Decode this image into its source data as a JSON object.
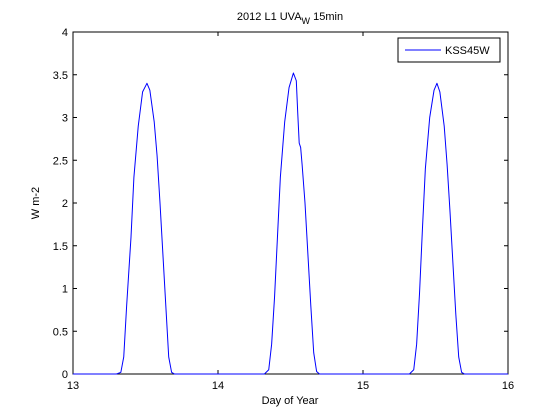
{
  "chart_data": {
    "type": "line",
    "title": {
      "main": "2012 L1 UVA",
      "subscript": "W",
      "suffix": " 15min"
    },
    "xlabel": "Day of Year",
    "ylabel": "W m-2",
    "xlim": [
      13,
      16
    ],
    "ylim": [
      0,
      4
    ],
    "xticks": [
      13,
      14,
      15,
      16
    ],
    "yticks": [
      0,
      0.5,
      1,
      1.5,
      2,
      2.5,
      3,
      3.5,
      4
    ],
    "xtick_labels": [
      "13",
      "14",
      "15",
      "16"
    ],
    "ytick_labels": [
      "0",
      "0.5",
      "1",
      "1.5",
      "2",
      "2.5",
      "3",
      "3.5",
      "4"
    ],
    "grid": false,
    "legend_position": "top-right",
    "series": [
      {
        "name": "KSS45W",
        "color": "#0000ff",
        "points": [
          [
            13.0,
            0
          ],
          [
            13.3,
            0
          ],
          [
            13.33,
            0.02
          ],
          [
            13.35,
            0.2
          ],
          [
            13.37,
            0.8
          ],
          [
            13.4,
            1.6
          ],
          [
            13.42,
            2.3
          ],
          [
            13.45,
            2.9
          ],
          [
            13.48,
            3.3
          ],
          [
            13.51,
            3.4
          ],
          [
            13.53,
            3.32
          ],
          [
            13.56,
            2.95
          ],
          [
            13.58,
            2.55
          ],
          [
            13.6,
            2.0
          ],
          [
            13.62,
            1.4
          ],
          [
            13.64,
            0.8
          ],
          [
            13.66,
            0.2
          ],
          [
            13.68,
            0.02
          ],
          [
            13.7,
            0
          ],
          [
            14.32,
            0
          ],
          [
            14.35,
            0.05
          ],
          [
            14.37,
            0.35
          ],
          [
            14.39,
            0.9
          ],
          [
            14.41,
            1.6
          ],
          [
            14.43,
            2.3
          ],
          [
            14.46,
            2.95
          ],
          [
            14.49,
            3.35
          ],
          [
            14.52,
            3.52
          ],
          [
            14.54,
            3.43
          ],
          [
            14.55,
            3.05
          ],
          [
            14.56,
            2.7
          ],
          [
            14.57,
            2.65
          ],
          [
            14.58,
            2.45
          ],
          [
            14.6,
            2.0
          ],
          [
            14.62,
            1.4
          ],
          [
            14.64,
            0.8
          ],
          [
            14.66,
            0.25
          ],
          [
            14.68,
            0.03
          ],
          [
            14.7,
            0
          ],
          [
            15.32,
            0
          ],
          [
            15.35,
            0.05
          ],
          [
            15.37,
            0.35
          ],
          [
            15.39,
            0.95
          ],
          [
            15.41,
            1.7
          ],
          [
            15.43,
            2.4
          ],
          [
            15.46,
            3.0
          ],
          [
            15.49,
            3.32
          ],
          [
            15.51,
            3.4
          ],
          [
            15.53,
            3.3
          ],
          [
            15.56,
            2.9
          ],
          [
            15.58,
            2.45
          ],
          [
            15.6,
            1.9
          ],
          [
            15.62,
            1.3
          ],
          [
            15.64,
            0.7
          ],
          [
            15.66,
            0.2
          ],
          [
            15.68,
            0.02
          ],
          [
            15.7,
            0
          ],
          [
            16.0,
            0
          ]
        ]
      }
    ]
  }
}
